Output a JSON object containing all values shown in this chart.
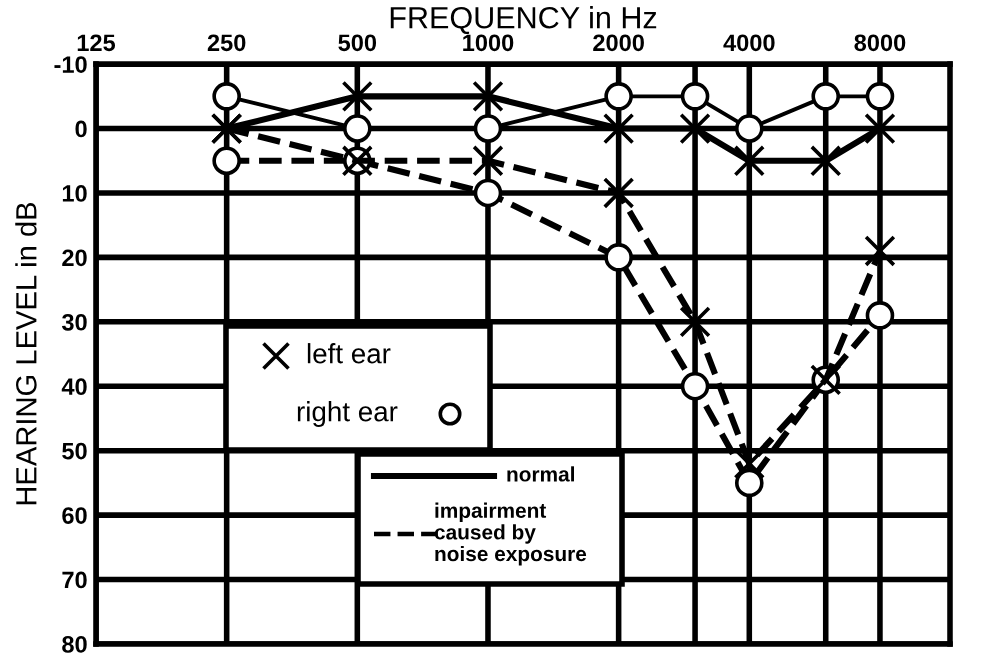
{
  "chart_data": {
    "type": "line",
    "xlabel": "FREQUENCY in Hz",
    "ylabel": "HEARING LEVEL in dB",
    "log": "x",
    "x": [
      250,
      500,
      1000,
      2000,
      3000,
      4000,
      6000,
      8000
    ],
    "xlim": [
      125,
      11600
    ],
    "xticks": [
      125,
      250,
      500,
      1000,
      2000,
      {
        "value": 3000,
        "label": null
      },
      4000,
      {
        "value": 6000,
        "label": null
      },
      8000
    ],
    "ylim": [
      80,
      -10
    ],
    "yticks": [
      -10,
      0,
      10,
      20,
      30,
      40,
      50,
      60,
      70,
      80
    ],
    "grid": true,
    "series": [
      {
        "color": "#000000",
        "marker": "cross",
        "line_style": "solid",
        "values": [
          0,
          -5,
          -5,
          0,
          0,
          5,
          5,
          0
        ]
      },
      {
        "color": "#000000",
        "marker": "circle",
        "line_style": "solid",
        "values": [
          -5,
          0,
          0,
          -5,
          -5,
          0,
          -5,
          -5
        ]
      },
      {
        "color": "#000000",
        "marker": "cross",
        "line_style": "dashed",
        "values": [
          0,
          5,
          5,
          10,
          30,
          52,
          39,
          19
        ]
      },
      {
        "color": "#000000",
        "marker": "circle",
        "line_style": "dashed",
        "values": [
          5,
          5,
          10,
          20,
          40,
          55,
          39,
          29
        ]
      }
    ],
    "annotations": [
      "left ear",
      "right ear",
      "normal",
      "impairment\ncaused by\nnoise exposure"
    ]
  }
}
